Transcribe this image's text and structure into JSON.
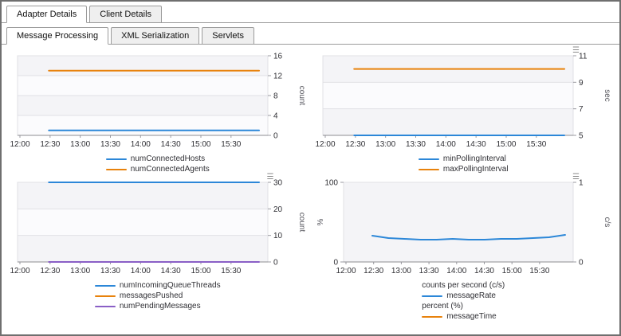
{
  "tabs_top": [
    {
      "label": "Adapter Details",
      "active": true
    },
    {
      "label": "Client Details",
      "active": false
    }
  ],
  "tabs_sub": [
    {
      "label": "Message Processing",
      "active": true
    },
    {
      "label": "XML Serialization",
      "active": false
    },
    {
      "label": "Servlets",
      "active": false
    }
  ],
  "colors": {
    "blue": "#2c87d8",
    "orange": "#e8820c",
    "purple": "#8a5fc6"
  },
  "chart_data": [
    {
      "type": "line",
      "x": [
        "12:00",
        "12:30",
        "13:00",
        "13:30",
        "14:00",
        "14:30",
        "15:00",
        "15:30"
      ],
      "ylabel_right": "count",
      "y_right": {
        "lim": [
          0,
          16
        ],
        "ticks": [
          0,
          4,
          8,
          12,
          16
        ]
      },
      "menu_icon": false,
      "series": [
        {
          "name": "numConnectedHosts",
          "color": "#2c87d8",
          "axis": "right",
          "value": 1
        },
        {
          "name": "numConnectedAgents",
          "color": "#e8820c",
          "axis": "right",
          "value": 13
        }
      ],
      "legend": [
        {
          "label": "numConnectedHosts",
          "color": "#2c87d8"
        },
        {
          "label": "numConnectedAgents",
          "color": "#e8820c"
        }
      ]
    },
    {
      "type": "line",
      "x": [
        "12:00",
        "12:30",
        "13:00",
        "13:30",
        "14:00",
        "14:30",
        "15:00",
        "15:30"
      ],
      "ylabel_right": "sec",
      "y_right": {
        "lim": [
          5,
          11
        ],
        "ticks": [
          5,
          7,
          9,
          11
        ]
      },
      "menu_icon": true,
      "series": [
        {
          "name": "minPollingInterval",
          "color": "#2c87d8",
          "axis": "right",
          "value": 5
        },
        {
          "name": "maxPollingInterval",
          "color": "#e8820c",
          "axis": "right",
          "value": 10
        }
      ],
      "legend": [
        {
          "label": "minPollingInterval",
          "color": "#2c87d8"
        },
        {
          "label": "maxPollingInterval",
          "color": "#e8820c"
        }
      ]
    },
    {
      "type": "line",
      "x": [
        "12:00",
        "12:30",
        "13:00",
        "13:30",
        "14:00",
        "14:30",
        "15:00",
        "15:30"
      ],
      "ylabel_right": "count",
      "y_right": {
        "lim": [
          0,
          30
        ],
        "ticks": [
          0,
          10,
          20,
          30
        ]
      },
      "menu_icon": true,
      "series": [
        {
          "name": "numIncomingQueueThreads",
          "color": "#2c87d8",
          "axis": "right",
          "value": 30
        },
        {
          "name": "messagesPushed",
          "color": "#e8820c",
          "axis": "right"
        },
        {
          "name": "numPendingMessages",
          "color": "#8a5fc6",
          "axis": "right",
          "value": 0
        }
      ],
      "legend": [
        {
          "label": "numIncomingQueueThreads",
          "color": "#2c87d8"
        },
        {
          "label": "messagesPushed",
          "color": "#e8820c"
        },
        {
          "label": "numPendingMessages",
          "color": "#8a5fc6"
        }
      ]
    },
    {
      "type": "line",
      "x": [
        "12:00",
        "12:30",
        "13:00",
        "13:30",
        "14:00",
        "14:30",
        "15:00",
        "15:30"
      ],
      "ylabel_left": "%",
      "y_left": {
        "lim": [
          0,
          100
        ],
        "ticks": [
          0,
          100
        ]
      },
      "ylabel_right": "c/s",
      "y_right": {
        "lim": [
          0,
          1
        ],
        "ticks": [
          0,
          1
        ]
      },
      "menu_icon": true,
      "series": [
        {
          "name": "messageRate",
          "color": "#2c87d8",
          "axis": "right",
          "values": [
            0.33,
            0.3,
            0.29,
            0.28,
            0.28,
            0.29,
            0.28,
            0.28,
            0.29,
            0.29,
            0.3,
            0.31,
            0.34
          ]
        },
        {
          "name": "messageTime",
          "color": "#e8820c",
          "axis": "left"
        }
      ],
      "legend": [
        {
          "label": "counts per second (c/s)"
        },
        {
          "label": "messageRate",
          "color": "#2c87d8"
        },
        {
          "label": "percent (%)"
        },
        {
          "label": "messageTime",
          "color": "#e8820c"
        }
      ]
    }
  ]
}
